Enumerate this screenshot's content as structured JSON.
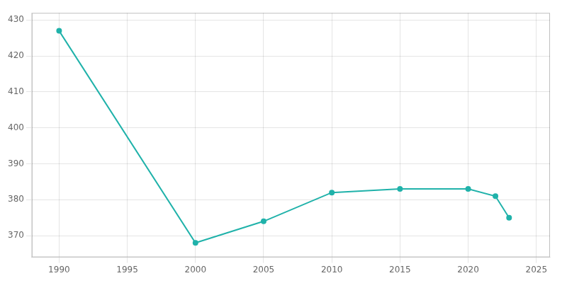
{
  "chart_data": {
    "type": "line",
    "x": [
      1990,
      2000,
      2005,
      2010,
      2015,
      2020,
      2022,
      2023
    ],
    "values": [
      427,
      368,
      374,
      382,
      383,
      383,
      381,
      375
    ],
    "color": "#20B2AA",
    "marker": "circle",
    "xlim": [
      1988,
      2026
    ],
    "ylim": [
      364,
      432
    ],
    "xticks": [
      1990,
      1995,
      2000,
      2005,
      2010,
      2015,
      2020,
      2025
    ],
    "yticks": [
      370,
      380,
      390,
      400,
      410,
      420,
      430
    ],
    "grid": true
  }
}
